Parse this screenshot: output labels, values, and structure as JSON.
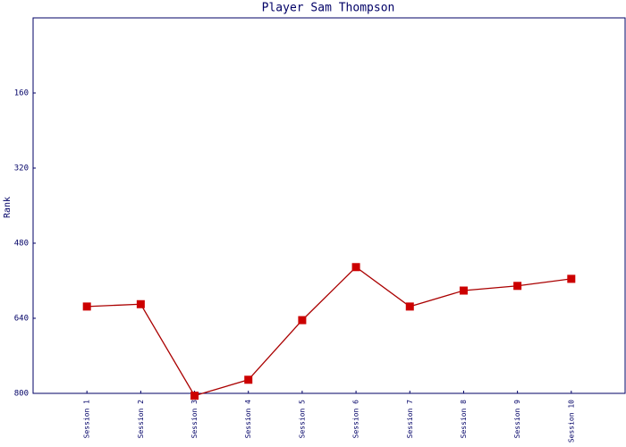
{
  "chart_data": {
    "type": "line",
    "title": "Player Sam Thompson",
    "y_label": "Rank",
    "categories": [
      "Session 1",
      "Session 2",
      "Session 3",
      "Session 4",
      "Session 5",
      "Session 6",
      "Session 7",
      "Session 8",
      "Session 9",
      "Session 10"
    ],
    "series": [
      {
        "name": "Rank",
        "color": "#aa0000",
        "marker_color": "#cc0000",
        "values": [
          615,
          610,
          805,
          771,
          644,
          531,
          615,
          581,
          571,
          556
        ]
      }
    ],
    "ylim": [
      800,
      0
    ],
    "yticks": [
      800,
      640,
      480,
      320,
      160
    ],
    "grid": false
  }
}
